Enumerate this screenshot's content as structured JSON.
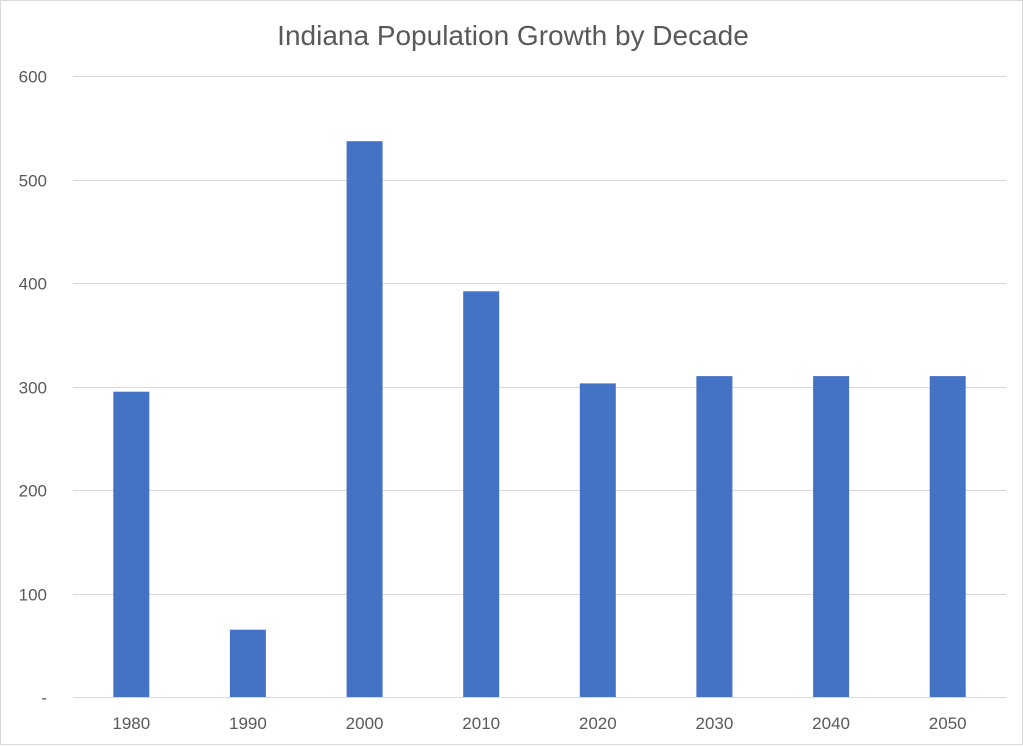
{
  "chart_data": {
    "type": "bar",
    "title": "Indiana Population Growth by Decade",
    "xlabel": "",
    "ylabel": "",
    "categories": [
      "1980",
      "1990",
      "2000",
      "2010",
      "2020",
      "2030",
      "2040",
      "2050"
    ],
    "values": [
      295,
      65,
      537,
      392,
      303,
      310,
      310,
      310
    ],
    "ylim": [
      0,
      600
    ],
    "yticks": [
      0,
      100,
      200,
      300,
      400,
      500,
      600
    ],
    "ytick_labels": [
      "-",
      "100",
      "200",
      "300",
      "400",
      "500",
      "600"
    ],
    "grid": true,
    "legend": "none",
    "bar_color": "#4472C4"
  }
}
